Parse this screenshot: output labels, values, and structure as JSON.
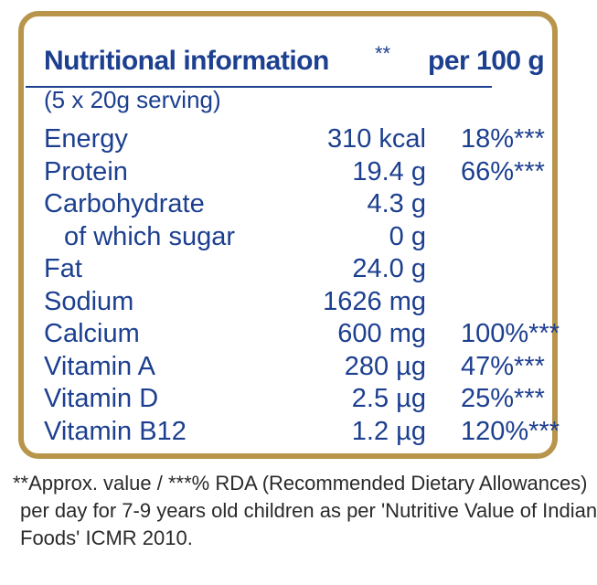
{
  "panel": {
    "title": "Nutritional information",
    "title_stars": "**",
    "title_per": "per 100 g",
    "serving": "(5 x 20g serving)"
  },
  "nutrients": [
    {
      "name": "Energy",
      "amount": "310 kcal",
      "rda": "18%***"
    },
    {
      "name": "Protein",
      "amount": "19.4 g",
      "rda": "66%***"
    },
    {
      "name": "Carbohydrate",
      "amount": "4.3 g",
      "rda": ""
    },
    {
      "name": "of which sugar",
      "amount": "0 g",
      "rda": ""
    },
    {
      "name": "Fat",
      "amount": "24.0 g",
      "rda": ""
    },
    {
      "name": "Sodium",
      "amount": "1626 mg",
      "rda": ""
    },
    {
      "name": "Calcium",
      "amount": "600 mg",
      "rda": "100%***"
    },
    {
      "name": "Vitamin A",
      "amount": "280 µg",
      "rda": "47%***"
    },
    {
      "name": "Vitamin D",
      "amount": "2.5 µg",
      "rda": "25%***"
    },
    {
      "name": "Vitamin B12",
      "amount": "1.2 µg",
      "rda": "120%***"
    }
  ],
  "footnote": {
    "line1": "**Approx. value / ***% RDA (Recommended Dietary Allowances)",
    "line2": "per day for 7-9 years old children as per 'Nutritive Value of Indian",
    "line3": "Foods' ICMR 2010."
  },
  "colors": {
    "text_blue": "#1c3f8f",
    "border_gold": "#b8954a",
    "footnote_text": "#2a2a2a"
  }
}
